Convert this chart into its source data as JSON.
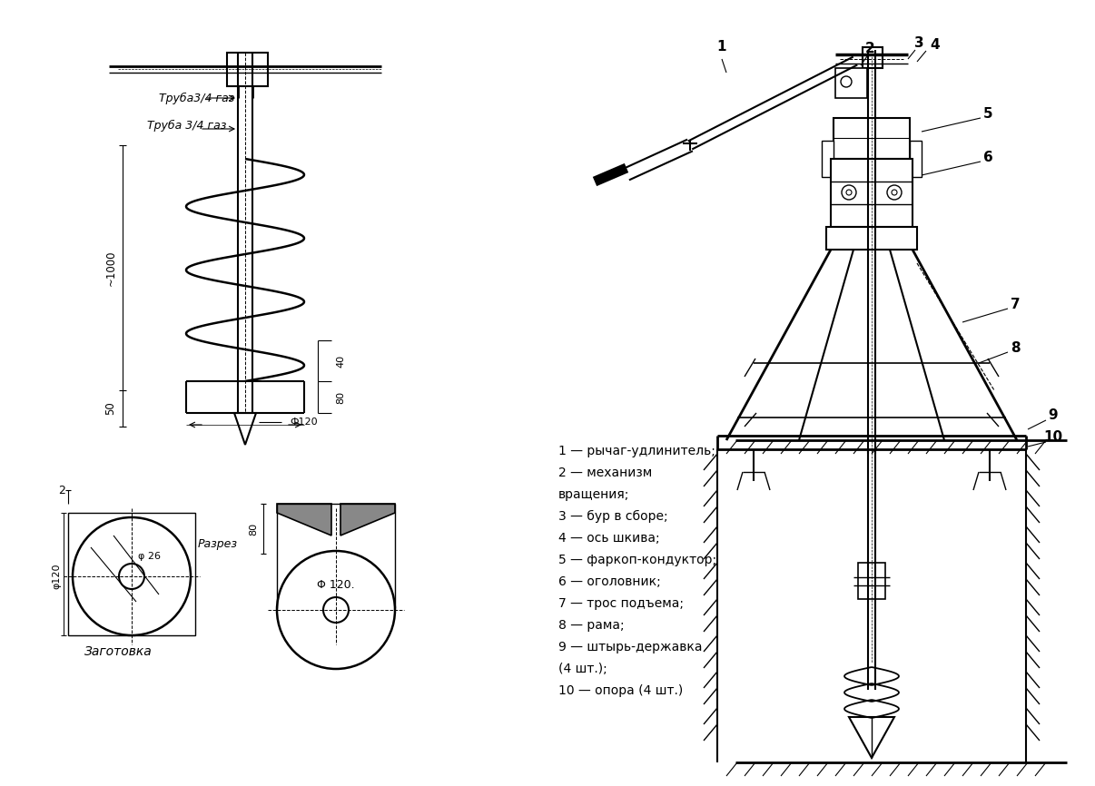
{
  "bg_color": "#ffffff",
  "line_color": "#000000",
  "legend": [
    "1 — рычаг-удлинитель;",
    "2 — механизм",
    "вращения;",
    "3 — бур в сборе;",
    "4 — ось шкива;",
    "5 — фаркоп-кондуктор;",
    "6 — оголовник;",
    "7 — трос подъема;",
    "8 — рама;",
    "9 — штырь-державка",
    "(4 шт.);",
    "10 — опора (4 шт.)"
  ]
}
